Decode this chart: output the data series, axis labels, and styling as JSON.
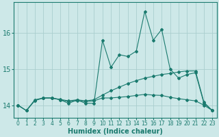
{
  "xlabel": "Humidex (Indice chaleur)",
  "x": [
    0,
    1,
    2,
    3,
    4,
    5,
    6,
    7,
    8,
    9,
    10,
    11,
    12,
    13,
    14,
    15,
    16,
    17,
    18,
    19,
    20,
    21,
    22,
    23
  ],
  "line1": [
    14.0,
    13.85,
    14.15,
    14.2,
    14.2,
    14.15,
    14.05,
    14.15,
    14.05,
    14.05,
    15.8,
    15.05,
    15.4,
    15.35,
    15.5,
    16.6,
    15.8,
    16.1,
    15.0,
    14.75,
    14.85,
    14.9,
    14.05,
    13.85
  ],
  "line2": [
    14.0,
    13.85,
    14.13,
    14.2,
    14.2,
    14.16,
    14.12,
    14.15,
    14.12,
    14.15,
    14.28,
    14.4,
    14.5,
    14.6,
    14.68,
    14.75,
    14.8,
    14.85,
    14.88,
    14.92,
    14.95,
    14.95,
    14.08,
    13.85
  ],
  "line3": [
    14.0,
    13.85,
    14.13,
    14.2,
    14.2,
    14.15,
    14.1,
    14.12,
    14.1,
    14.12,
    14.2,
    14.2,
    14.22,
    14.24,
    14.27,
    14.3,
    14.28,
    14.27,
    14.22,
    14.18,
    14.15,
    14.12,
    14.0,
    13.85
  ],
  "line_color": "#1a7a6e",
  "bg_color": "#cde8e8",
  "grid_color": "#aacece",
  "ylim": [
    13.65,
    16.85
  ],
  "yticks": [
    14,
    15,
    16
  ],
  "marker": "D",
  "marker_size": 2.0
}
